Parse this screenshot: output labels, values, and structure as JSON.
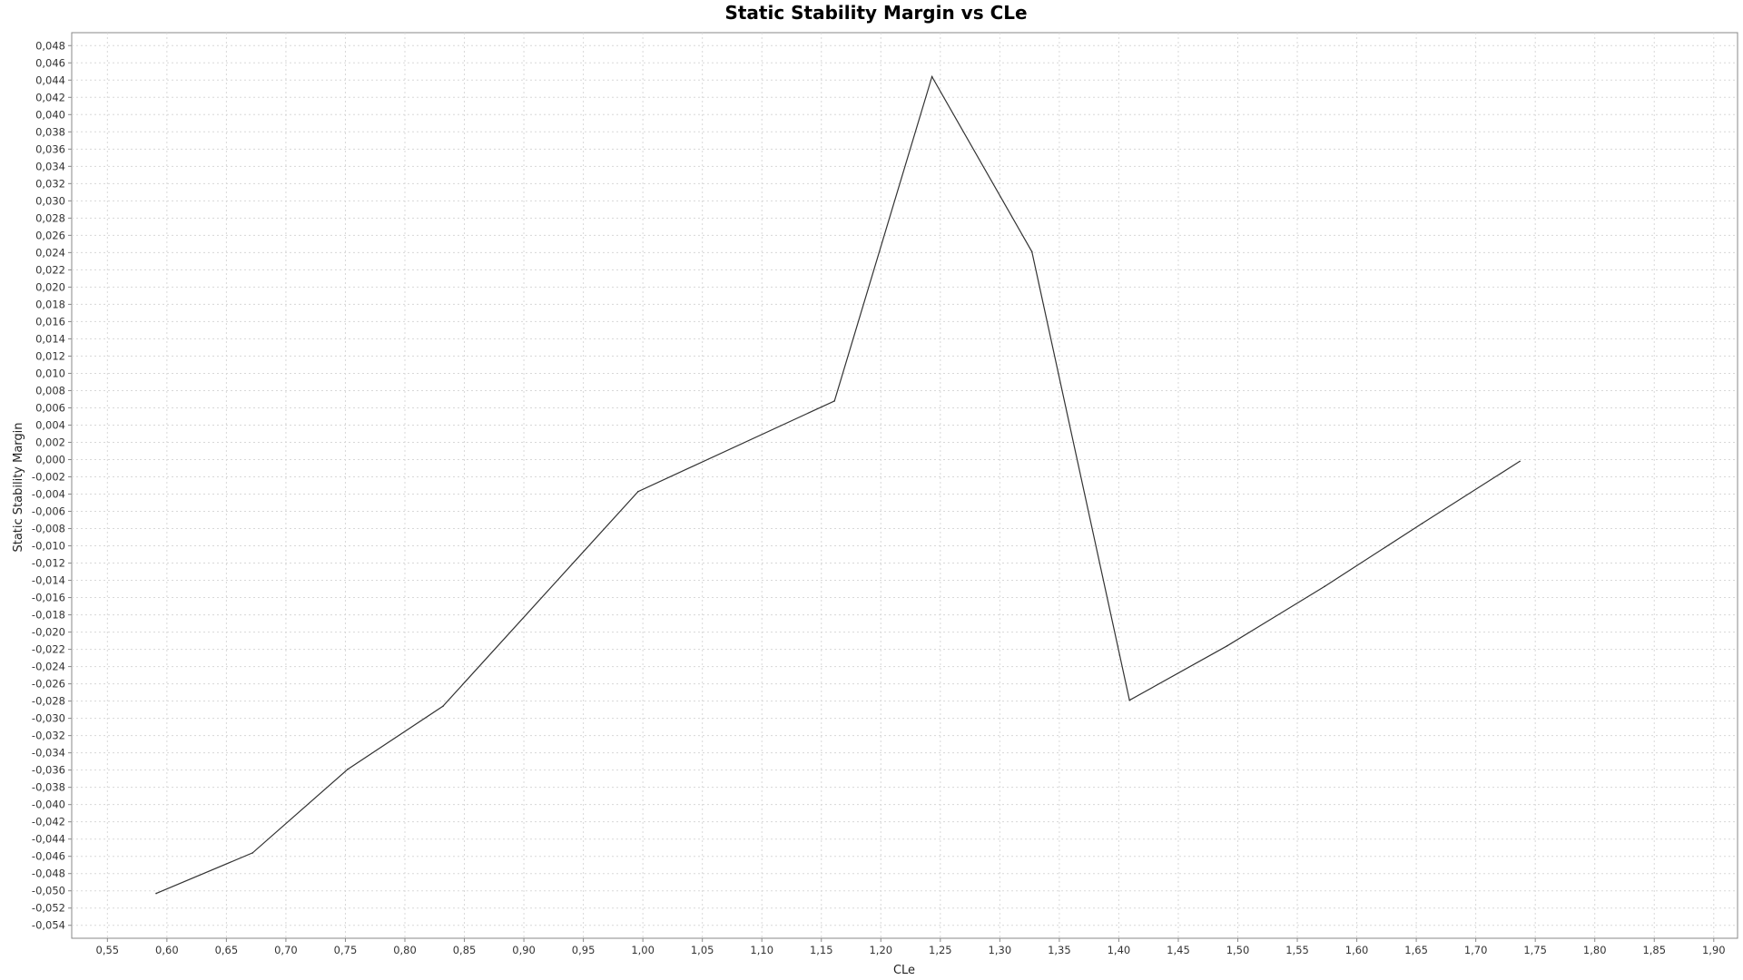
{
  "chart_data": {
    "type": "line",
    "title": "Static Stability Margin vs CLe",
    "xlabel": "CLe",
    "ylabel": "Static Stability Margin",
    "xlim": [
      0.52,
      1.92
    ],
    "ylim": [
      -0.0555,
      0.0495
    ],
    "x_ticks": [
      "0,55",
      "0,60",
      "0,65",
      "0,70",
      "0,75",
      "0,80",
      "0,85",
      "0,90",
      "0,95",
      "1,00",
      "1,05",
      "1,10",
      "1,15",
      "1,20",
      "1,25",
      "1,30",
      "1,35",
      "1,40",
      "1,45",
      "1,50",
      "1,55",
      "1,60",
      "1,65",
      "1,70",
      "1,75",
      "1,80",
      "1,85",
      "1,90"
    ],
    "x_tick_values": [
      0.55,
      0.6,
      0.65,
      0.7,
      0.75,
      0.8,
      0.85,
      0.9,
      0.95,
      1.0,
      1.05,
      1.1,
      1.15,
      1.2,
      1.25,
      1.3,
      1.35,
      1.4,
      1.45,
      1.5,
      1.55,
      1.6,
      1.65,
      1.7,
      1.75,
      1.8,
      1.85,
      1.9
    ],
    "y_ticks": [
      "0,048",
      "0,046",
      "0,044",
      "0,042",
      "0,040",
      "0,038",
      "0,036",
      "0,034",
      "0,032",
      "0,030",
      "0,028",
      "0,026",
      "0,024",
      "0,022",
      "0,020",
      "0,018",
      "0,016",
      "0,014",
      "0,012",
      "0,010",
      "0,008",
      "0,006",
      "0,004",
      "0,002",
      "0,000",
      "-0,002",
      "-0,004",
      "-0,006",
      "-0,008",
      "-0,010",
      "-0,012",
      "-0,014",
      "-0,016",
      "-0,018",
      "-0,020",
      "-0,022",
      "-0,024",
      "-0,026",
      "-0,028",
      "-0,030",
      "-0,032",
      "-0,034",
      "-0,036",
      "-0,038",
      "-0,040",
      "-0,042",
      "-0,044",
      "-0,046",
      "-0,048",
      "-0,050",
      "-0,052",
      "-0,054"
    ],
    "y_tick_values": [
      0.048,
      0.046,
      0.044,
      0.042,
      0.04,
      0.038,
      0.036,
      0.034,
      0.032,
      0.03,
      0.028,
      0.026,
      0.024,
      0.022,
      0.02,
      0.018,
      0.016,
      0.014,
      0.012,
      0.01,
      0.008,
      0.006,
      0.004,
      0.002,
      0.0,
      -0.002,
      -0.004,
      -0.006,
      -0.008,
      -0.01,
      -0.012,
      -0.014,
      -0.016,
      -0.018,
      -0.02,
      -0.022,
      -0.024,
      -0.026,
      -0.028,
      -0.03,
      -0.032,
      -0.034,
      -0.036,
      -0.038,
      -0.04,
      -0.042,
      -0.044,
      -0.046,
      -0.048,
      -0.05,
      -0.052,
      -0.054
    ],
    "grid": true,
    "legend": false,
    "series": [
      {
        "color": "#333333",
        "x": [
          0.591,
          0.672,
          0.752,
          0.832,
          0.996,
          1.161,
          1.243,
          1.327,
          1.409,
          1.491,
          1.573,
          1.655,
          1.737
        ],
        "y": [
          -0.0503,
          -0.0456,
          -0.0359,
          -0.0286,
          -0.0037,
          0.0068,
          0.0444,
          0.0241,
          -0.0279,
          -0.0216,
          -0.0147,
          -0.0074,
          -0.0002
        ]
      }
    ]
  }
}
